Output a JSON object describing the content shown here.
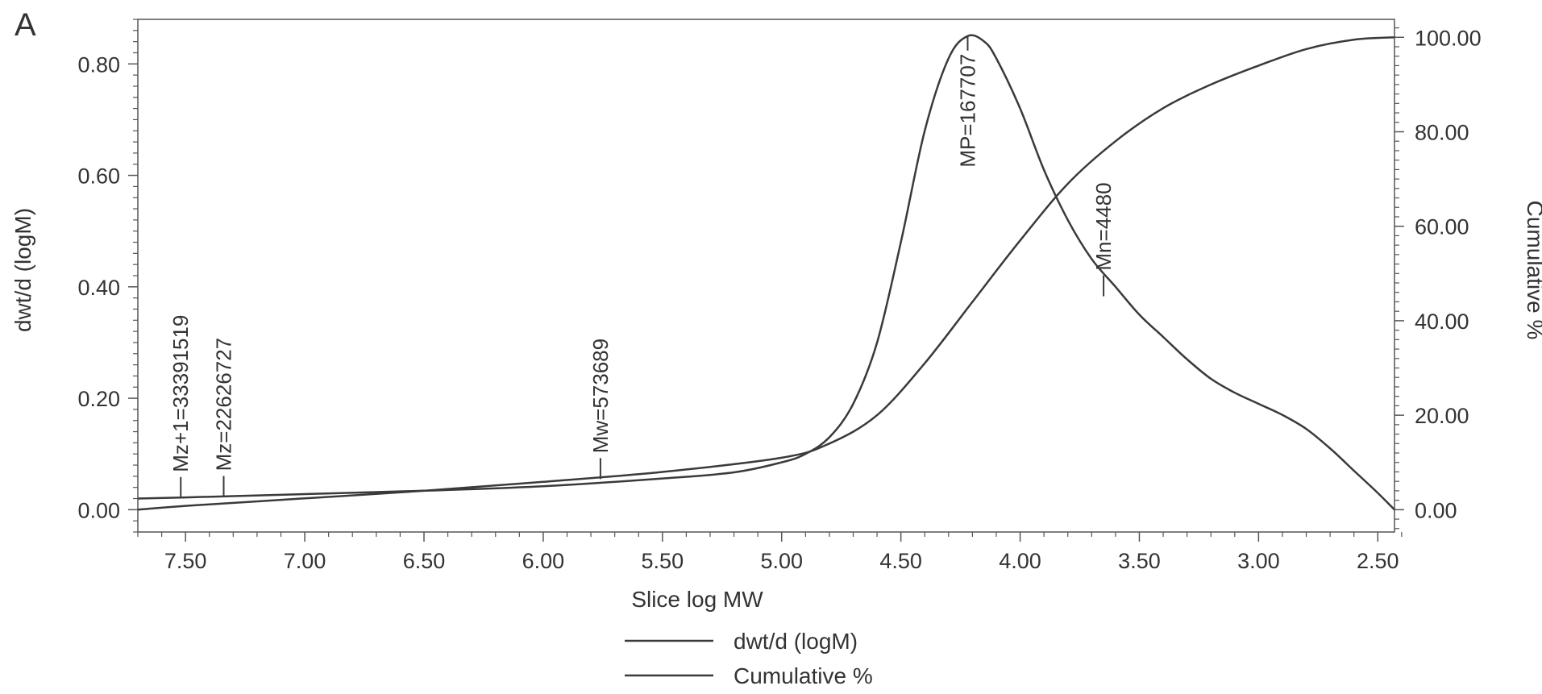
{
  "panel_label": "A",
  "colors": {
    "line": "#3a3a3a",
    "axis": "#555555",
    "text": "#333333"
  },
  "chart_data": {
    "type": "line",
    "xlabel": "Slice log MW",
    "ylabel": "dwt/d (logM)",
    "y2label": "Cumulative %",
    "x_reversed": true,
    "xlim": [
      7.7,
      2.43
    ],
    "ylim": [
      -0.04,
      0.88
    ],
    "y2lim": [
      -4.72,
      103.8
    ],
    "grid": false,
    "legend_placement": "bottom-center",
    "x_ticks": [
      {
        "value": 7.5,
        "label": "7.50"
      },
      {
        "value": 7.0,
        "label": "7.00"
      },
      {
        "value": 6.5,
        "label": "6.50"
      },
      {
        "value": 6.0,
        "label": "6.00"
      },
      {
        "value": 5.5,
        "label": "5.50"
      },
      {
        "value": 5.0,
        "label": "5.00"
      },
      {
        "value": 4.5,
        "label": "4.50"
      },
      {
        "value": 4.0,
        "label": "4.00"
      },
      {
        "value": 3.5,
        "label": "3.50"
      },
      {
        "value": 3.0,
        "label": "3.00"
      },
      {
        "value": 2.5,
        "label": "2.50"
      }
    ],
    "y_ticks": [
      {
        "value": 0.0,
        "label": "0.00"
      },
      {
        "value": 0.2,
        "label": "0.20"
      },
      {
        "value": 0.4,
        "label": "0.40"
      },
      {
        "value": 0.6,
        "label": "0.60"
      },
      {
        "value": 0.8,
        "label": "0.80"
      }
    ],
    "y2_ticks": [
      {
        "value": 0,
        "label": "0.00"
      },
      {
        "value": 20,
        "label": "20.00"
      },
      {
        "value": 40,
        "label": "40.00"
      },
      {
        "value": 60,
        "label": "60.00"
      },
      {
        "value": 80,
        "label": "80.00"
      },
      {
        "value": 100,
        "label": "100.00"
      }
    ],
    "series": [
      {
        "name": "dwt/d (logM)",
        "axis": "left",
        "x": [
          7.7,
          7.5,
          7.0,
          6.5,
          6.0,
          5.5,
          5.2,
          5.0,
          4.9,
          4.8,
          4.7,
          4.6,
          4.5,
          4.4,
          4.3,
          4.22,
          4.15,
          4.1,
          4.0,
          3.9,
          3.8,
          3.7,
          3.6,
          3.5,
          3.4,
          3.3,
          3.2,
          3.1,
          3.0,
          2.9,
          2.8,
          2.7,
          2.6,
          2.5,
          2.43
        ],
        "y": [
          0.02,
          0.022,
          0.028,
          0.034,
          0.042,
          0.056,
          0.067,
          0.085,
          0.1,
          0.13,
          0.19,
          0.3,
          0.48,
          0.68,
          0.81,
          0.85,
          0.84,
          0.81,
          0.72,
          0.61,
          0.52,
          0.45,
          0.4,
          0.35,
          0.31,
          0.27,
          0.235,
          0.21,
          0.19,
          0.17,
          0.145,
          0.11,
          0.07,
          0.03,
          0.0
        ]
      },
      {
        "name": "Cumulative %",
        "axis": "right",
        "x": [
          7.7,
          7.5,
          7.0,
          6.5,
          6.0,
          5.5,
          5.0,
          4.8,
          4.6,
          4.4,
          4.2,
          4.0,
          3.8,
          3.6,
          3.4,
          3.2,
          3.0,
          2.8,
          2.6,
          2.43
        ],
        "y": [
          0.0,
          0.8,
          2.4,
          4.0,
          5.9,
          8.0,
          11.0,
          14.0,
          20.0,
          31.0,
          44.0,
          57.0,
          69.0,
          78.0,
          85.0,
          90.0,
          94.0,
          97.5,
          99.5,
          100.0
        ]
      }
    ],
    "markers": [
      {
        "label": "Mz+1=33391519",
        "x": 7.52,
        "y": 0.021,
        "side": "above"
      },
      {
        "label": "Mz=22626727",
        "x": 7.34,
        "y": 0.023,
        "side": "above"
      },
      {
        "label": "Mw=573689",
        "x": 5.76,
        "y": 0.055,
        "side": "above"
      },
      {
        "label": "MP=167707",
        "x": 4.22,
        "y": 0.85,
        "side": "below"
      },
      {
        "label": "Mn=4480",
        "x": 3.65,
        "y": 0.383,
        "side": "above"
      }
    ]
  }
}
